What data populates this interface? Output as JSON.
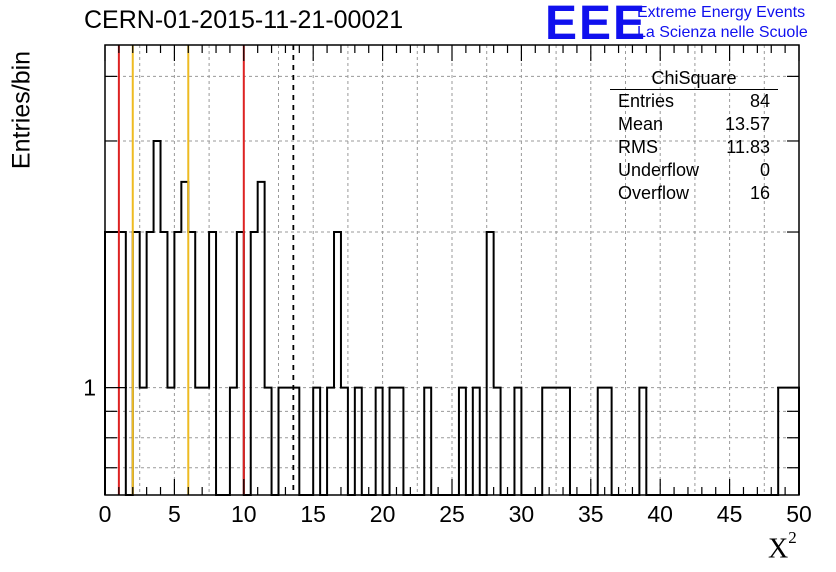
{
  "chart_data": {
    "type": "bar",
    "title": "CERN-01-2015-11-21-00021",
    "xlabel": "X",
    "xlabel_sup": "2",
    "ylabel": "Entries/bin",
    "xlim": [
      0,
      50
    ],
    "ylim": [
      0.62,
      4.6
    ],
    "ylog": true,
    "grid": true,
    "xticks": [
      "0",
      "5",
      "10",
      "15",
      "20",
      "25",
      "30",
      "35",
      "40",
      "45",
      "50"
    ],
    "yticks": [
      "1"
    ],
    "bin_width": 0.5,
    "bins": [
      [
        0.0,
        2
      ],
      [
        0.5,
        2
      ],
      [
        1.0,
        2
      ],
      [
        2.0,
        2
      ],
      [
        2.5,
        1
      ],
      [
        3.0,
        2
      ],
      [
        3.5,
        3
      ],
      [
        4.0,
        2
      ],
      [
        4.5,
        1
      ],
      [
        5.0,
        2
      ],
      [
        5.5,
        2.5
      ],
      [
        6.0,
        2
      ],
      [
        6.5,
        1
      ],
      [
        7.0,
        1
      ],
      [
        7.5,
        2
      ],
      [
        9.0,
        1
      ],
      [
        9.5,
        2
      ],
      [
        10.5,
        2
      ],
      [
        11.0,
        2.5
      ],
      [
        11.5,
        1
      ],
      [
        12.5,
        1
      ],
      [
        13.0,
        1
      ],
      [
        13.5,
        1
      ],
      [
        15.0,
        1
      ],
      [
        16.0,
        1
      ],
      [
        16.5,
        2
      ],
      [
        17.0,
        1
      ],
      [
        18.0,
        1
      ],
      [
        19.5,
        1
      ],
      [
        20.5,
        1
      ],
      [
        21.0,
        1
      ],
      [
        23.0,
        1
      ],
      [
        25.5,
        1
      ],
      [
        26.5,
        1
      ],
      [
        27.5,
        2
      ],
      [
        28.0,
        1
      ],
      [
        29.5,
        1
      ],
      [
        31.5,
        1
      ],
      [
        32.0,
        1
      ],
      [
        32.5,
        1
      ],
      [
        33.0,
        1
      ],
      [
        35.5,
        1
      ],
      [
        36.0,
        1
      ],
      [
        38.5,
        1
      ],
      [
        48.5,
        1
      ],
      [
        49.0,
        1
      ],
      [
        49.5,
        1
      ]
    ],
    "lines": [
      {
        "x": 1,
        "color": "#dd2222",
        "style": "solid"
      },
      {
        "x": 2,
        "color": "#eebb22",
        "style": "solid"
      },
      {
        "x": 6,
        "color": "#eebb22",
        "style": "solid"
      },
      {
        "x": 10,
        "color": "#dd2222",
        "style": "solid"
      },
      {
        "x": 13.57,
        "color": "#000000",
        "style": "dashed"
      }
    ],
    "stats": {
      "name": "ChiSquare",
      "rows": [
        {
          "label": "Entries",
          "value": "84"
        },
        {
          "label": "Mean",
          "value": "13.57"
        },
        {
          "label": "RMS",
          "value": "11.83"
        },
        {
          "label": "Underflow",
          "value": "0"
        },
        {
          "label": "Overflow",
          "value": "16"
        }
      ]
    }
  },
  "logo": {
    "text": "EEE",
    "line1": "Extreme Energy Events",
    "line2": "La Scienza nelle Scuole",
    "color": "#1010ee"
  }
}
